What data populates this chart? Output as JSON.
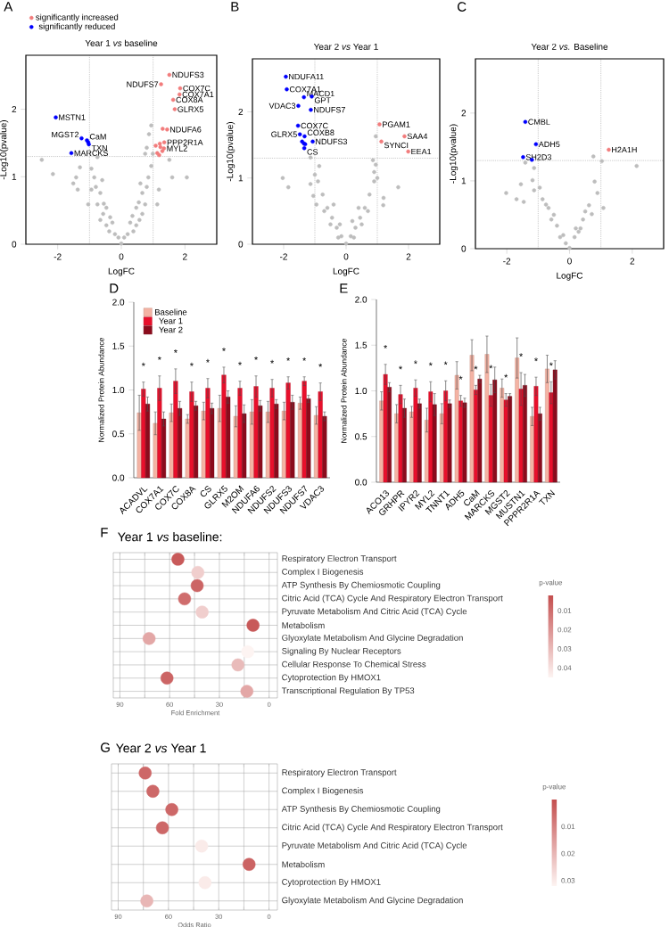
{
  "chart_data": [
    {
      "type": "scatter",
      "title": "Year 1 *vs* baseline",
      "xlabel": "LogFC",
      "ylabel": "-Log10(pvalue)",
      "xlim": [
        -3,
        3
      ],
      "ylim": [
        0,
        2.8
      ],
      "xticks": [
        -2,
        0,
        2
      ],
      "yticks": [
        0,
        1,
        2
      ],
      "marker": "circle",
      "legend": "top left",
      "series": [
        {
          "color": "#bdbdbd",
          "x": [
            -2.5,
            -2.15,
            -1.42,
            -1.37,
            -1.51,
            -1.3,
            -0.94,
            -0.75,
            -0.85,
            -0.94,
            -1.04,
            -0.75,
            -0.66,
            -0.66,
            -0.57,
            -0.47,
            -0.47,
            -0.38,
            -0.28,
            -0.09,
            0,
            0.09,
            0.28,
            0.38,
            0.47,
            0.47,
            0.57,
            0.66,
            0.66,
            0.75,
            0.85,
            0.94,
            0.99,
            0.75,
            0.8,
            0.87,
            0.94,
            1.13,
            1.18,
            1.51,
            1.6,
            2.06,
            -0.2,
            0.2,
            -0.55,
            0.55,
            -0.8,
            0.8,
            -0.35,
            0.35,
            -0.6,
            0.6
          ],
          "values": [
            1.25,
            1.04,
            0.99,
            0.81,
            0.9,
            1.14,
            1.12,
            1.29,
            0.99,
            0.81,
            0.59,
            0.59,
            0.76,
            0.36,
            0.45,
            0.54,
            0.28,
            0.19,
            0.32,
            0.1,
            0.01,
            0.1,
            0.32,
            0.19,
            0.28,
            0.54,
            0.36,
            0.45,
            0.76,
            0.59,
            0.99,
            1.16,
            1.34,
            1.34,
            1.43,
            1.63,
            1.76,
            0.59,
            0.81,
            1.25,
            0.99,
            0.99,
            0.15,
            0.15,
            0.6,
            0.62,
            0.85,
            0.85,
            0.4,
            0.42,
            0.95,
            0.9
          ]
        },
        {
          "name": "significantly increased",
          "color": "#f27c7c",
          "x": [
            1.51,
            1.25,
            1.85,
            1.83,
            1.63,
            1.68,
            1.3,
            1.44,
            1.08,
            1.21,
            1.35,
            1.23,
            1.34,
            1.13,
            1.29,
            1.19
          ],
          "values": [
            2.51,
            2.37,
            2.31,
            2.22,
            2.14,
            2.0,
            1.71,
            1.7,
            1.46,
            1.49,
            1.51,
            1.44,
            1.42,
            1.35,
            1.38,
            1.32
          ]
        },
        {
          "name": "significantly reduced",
          "color": "#0000ff",
          "x": [
            -2.06,
            -1.25,
            -1.08,
            -1.04,
            -1.02,
            -1.57
          ],
          "values": [
            1.88,
            1.57,
            1.54,
            1.51,
            1.48,
            1.35
          ]
        }
      ],
      "ref_lines": [
        {
          "axis": "x",
          "value": -1,
          "line_style": "dotted"
        },
        {
          "axis": "x",
          "value": 1,
          "line_style": "dotted"
        },
        {
          "axis": "y",
          "value": 1.3,
          "line_style": "dotted"
        }
      ],
      "annotations": [
        "A",
        {
          "text": "MSTN1",
          "x": -2.06,
          "y": 1.88
        },
        {
          "text": "MGST2",
          "x": -1.25,
          "y": 1.57
        },
        {
          "text": "CaM",
          "x": -1.08,
          "y": 1.54
        },
        {
          "text": "TXN",
          "x": -1.02,
          "y": 1.48
        },
        {
          "text": "MARCKS",
          "x": -1.57,
          "y": 1.35
        },
        {
          "text": "NDUFS3",
          "x": 1.51,
          "y": 2.51
        },
        {
          "text": "NDUFS7",
          "x": 1.25,
          "y": 2.37
        },
        {
          "text": "COX7C",
          "x": 1.85,
          "y": 2.31
        },
        {
          "text": "COX7A1",
          "x": 1.83,
          "y": 2.22
        },
        {
          "text": "COX8A",
          "x": 1.63,
          "y": 2.14
        },
        {
          "text": "GLRX5",
          "x": 1.68,
          "y": 2.0
        },
        {
          "text": "NDUFA6",
          "x": 1.44,
          "y": 1.7
        },
        {
          "text": "PPP2R1A",
          "x": 1.35,
          "y": 1.51
        },
        {
          "text": "MYL2",
          "x": 1.34,
          "y": 1.42
        }
      ]
    },
    {
      "type": "scatter",
      "title": "Year 2 *vs* Year 1",
      "xlabel": "LogFC",
      "ylabel": "-Log10(pvalue)",
      "xlim": [
        -3,
        3
      ],
      "ylim": [
        0,
        2.8
      ],
      "xticks": [
        -2,
        0,
        2
      ],
      "yticks": [
        0,
        1,
        2
      ],
      "marker": "circle",
      "series": [
        {
          "color": "#bdbdbd",
          "x": [
            -2.03,
            -1.85,
            -1.14,
            -1.05,
            -0.86,
            -1.14,
            -0.9,
            -0.75,
            -0.6,
            -0.45,
            -0.3,
            -0.15,
            0,
            0.15,
            0.3,
            0.45,
            0.6,
            0.75,
            0.9,
            0.86,
            0.9,
            0.95,
            1.19,
            1.67,
            -0.5,
            0.5,
            -0.25,
            0.25,
            -0.7,
            0.7,
            -0.4,
            0.4,
            0.95,
            1.0,
            -1.0,
            -0.95,
            0.2,
            -0.2,
            1.2
          ],
          "values": [
            1.0,
            0.86,
            0.91,
            0.73,
            1.18,
            1.31,
            0.95,
            0.75,
            0.55,
            0.4,
            0.25,
            0.12,
            0.01,
            0.12,
            0.25,
            0.4,
            0.55,
            0.75,
            0.95,
            1.27,
            1.09,
            1.63,
            0.59,
            0.86,
            0.3,
            0.3,
            0.1,
            0.1,
            0.5,
            0.5,
            0.6,
            0.55,
            1.2,
            1.0,
            1.05,
            0.6,
            0.35,
            0.3,
            0.7
          ]
        },
        {
          "color": "#f27c7c",
          "x": [
            1.07,
            1.87,
            1.13,
            1.99
          ],
          "values": [
            1.81,
            1.63,
            1.55,
            1.4
          ]
        },
        {
          "color": "#0000ff",
          "x": [
            -1.93,
            -1.9,
            -1.35,
            -1.1,
            -1.53,
            -1.13,
            -1.54,
            -1.48,
            -1.33,
            -1.07,
            -1.41,
            -1.35,
            -1.31,
            -1.34
          ],
          "values": [
            2.53,
            2.34,
            2.22,
            2.23,
            2.09,
            2.03,
            1.79,
            1.66,
            1.63,
            1.55,
            1.55,
            1.52,
            1.51,
            1.45
          ]
        }
      ],
      "ref_lines": [
        {
          "axis": "x",
          "value": -1,
          "line_style": "dotted"
        },
        {
          "axis": "x",
          "value": 1,
          "line_style": "dotted"
        },
        {
          "axis": "y",
          "value": 1.3,
          "line_style": "dotted"
        }
      ],
      "annotations": [
        "B",
        {
          "text": "NDUFA11",
          "x": -1.93,
          "y": 2.53
        },
        {
          "text": "COX7A1",
          "x": -1.9,
          "y": 2.34
        },
        {
          "text": "MACD1",
          "x": -1.35,
          "y": 2.22
        },
        {
          "text": "GPT",
          "x": -1.1,
          "y": 2.23
        },
        {
          "text": "VDAC3",
          "x": -1.53,
          "y": 2.09
        },
        {
          "text": "NDUFS7",
          "x": -1.13,
          "y": 2.03
        },
        {
          "text": "COX7C",
          "x": -1.54,
          "y": 1.79
        },
        {
          "text": "GLRX5",
          "x": -1.48,
          "y": 1.66
        },
        {
          "text": "COXB8",
          "x": -1.33,
          "y": 1.63
        },
        {
          "text": "NDUFS3",
          "x": -1.07,
          "y": 1.55
        },
        {
          "text": "CS",
          "x": -1.34,
          "y": 1.45
        },
        {
          "text": "PGAM1",
          "x": 1.07,
          "y": 1.81
        },
        {
          "text": "SAA4",
          "x": 1.87,
          "y": 1.63
        },
        {
          "text": "SYNCI",
          "x": 1.13,
          "y": 1.55
        },
        {
          "text": "EEA1",
          "x": 1.99,
          "y": 1.4
        }
      ]
    },
    {
      "type": "scatter",
      "title": "Year 2 *vs.* Baseline",
      "xlabel": "LogFC",
      "ylabel": "-Log10(pvalue)",
      "xlim": [
        -3,
        3
      ],
      "ylim": [
        0,
        2.8
      ],
      "xticks": [
        -2,
        0,
        2
      ],
      "yticks": [
        0,
        1,
        2
      ],
      "marker": "circle",
      "series": [
        {
          "color": "#bdbdbd",
          "x": [
            2.14,
            0.76,
            1.03,
            -2.02,
            -1.69,
            -1.46,
            -1.55,
            -1.41,
            -1.13,
            -1.18,
            -1.13,
            -0.95,
            1.08,
            0.89,
            0.8,
            -0.67,
            -0.4,
            -0.12,
            0,
            0.16,
            0.43,
            0.62,
            -0.58,
            -0.3,
            0.29,
            -0.86,
            0.71,
            -0.5,
            0.5,
            -0.2,
            0.2,
            -0.75,
            0.35
          ],
          "values": [
            1.22,
            1.36,
            1.29,
            0.82,
            0.73,
            0.69,
            0.95,
            1.27,
            1.19,
            1.01,
            0.86,
            0.9,
            0.6,
            0.82,
            0.99,
            0.6,
            0.34,
            0.08,
            0.01,
            0.17,
            0.43,
            0.64,
            0.43,
            0.17,
            0.25,
            0.73,
            0.51,
            0.5,
            0.55,
            0.2,
            0.3,
            0.65,
            0.3
          ]
        },
        {
          "color": "#f27c7c",
          "x": [
            1.25
          ],
          "values": [
            1.46
          ]
        },
        {
          "color": "#0000ff",
          "x": [
            -1.41,
            -1.07,
            -1.48,
            -1.2
          ],
          "values": [
            1.87,
            1.54,
            1.35,
            1.31
          ]
        }
      ],
      "ref_lines": [
        {
          "axis": "x",
          "value": -1,
          "line_style": "dotted"
        },
        {
          "axis": "x",
          "value": 1,
          "line_style": "dotted"
        },
        {
          "axis": "y",
          "value": 1.3,
          "line_style": "dotted"
        }
      ],
      "annotations": [
        "C",
        {
          "text": "CMBL",
          "x": -1.41,
          "y": 1.87
        },
        {
          "text": "ADH5",
          "x": -1.07,
          "y": 1.54
        },
        {
          "text": "SH2D3",
          "x": -1.48,
          "y": 1.35
        },
        {
          "text": "H2A1H",
          "x": 1.25,
          "y": 1.46
        }
      ]
    },
    {
      "type": "bar",
      "ylabel": "Normalized Protein Abundance",
      "ylim": [
        0,
        2
      ],
      "yticks": [
        {
          "value": 0,
          "label": "0.0"
        },
        {
          "value": 0.5,
          "label": "0.5"
        },
        {
          "value": 1,
          "label": "1.0"
        },
        {
          "value": 1.5,
          "label": "1.5"
        },
        {
          "value": 2,
          "label": "2.0"
        }
      ],
      "legend": "top left",
      "categories": [
        "ACADVL",
        "COX7A1",
        "COX7C",
        "COX8A",
        "CS",
        "GLRX5",
        "M2OM",
        "NDUFA6",
        "NDUFS2",
        "NDUFS3",
        "NDUFS7",
        "VDAC3"
      ],
      "series": [
        {
          "name": "Baseline",
          "color": "#f4b3a4",
          "values": [
            0.74,
            0.62,
            0.74,
            0.67,
            0.76,
            0.79,
            0.7,
            0.75,
            0.75,
            0.76,
            0.85,
            0.71
          ],
          "errors": [
            0.2,
            0.13,
            0.1,
            0.05,
            0.1,
            0.15,
            0.12,
            0.14,
            0.12,
            0.1,
            0.07,
            0.1
          ]
        },
        {
          "name": "Year 1",
          "color": "#e8102c",
          "values": [
            1.01,
            1.02,
            1.1,
            0.98,
            1.02,
            1.17,
            1.02,
            1.04,
            1.02,
            1.08,
            1.1,
            0.98
          ],
          "errors": [
            0.08,
            0.14,
            0.14,
            0.11,
            0.11,
            0.09,
            0.08,
            0.12,
            0.1,
            0.07,
            0.05,
            0.1
          ]
        },
        {
          "name": "Year 2",
          "color": "#8b0b1c",
          "values": [
            0.84,
            0.67,
            0.79,
            0.82,
            0.79,
            0.92,
            0.73,
            0.82,
            0.84,
            0.86,
            0.9,
            0.7
          ],
          "errors": [
            0.08,
            0.08,
            0.08,
            0.05,
            0.06,
            0.07,
            0.1,
            0.06,
            0.05,
            0.08,
            0.04,
            0.05
          ]
        }
      ],
      "annotations": [
        "D",
        "*",
        "*",
        "*",
        "*",
        "*",
        "*",
        "*",
        "*",
        "*",
        "*",
        "*",
        "*"
      ]
    },
    {
      "type": "bar",
      "ylabel": "Normalized Protein Abundance",
      "ylim": [
        0,
        2
      ],
      "yticks": [
        {
          "value": 0,
          "label": "0.0"
        },
        {
          "value": 0.5,
          "label": "0.5"
        },
        {
          "value": 1,
          "label": "1.0"
        },
        {
          "value": 1.5,
          "label": "1.5"
        },
        {
          "value": 2,
          "label": "2.0"
        }
      ],
      "categories": [
        "ACO13",
        "GRHPR",
        "IPYR2",
        "MYL2",
        "TNNT1",
        "ADH5",
        "CaM",
        "MARCKS",
        "MGST2",
        "MUSTN1",
        "PPPR2R1A",
        "TXN"
      ],
      "series": [
        {
          "color": "#f4b3a4",
          "values": [
            0.89,
            0.75,
            0.77,
            0.68,
            0.75,
            1.17,
            1.39,
            1.4,
            1.03,
            1.36,
            0.72,
            1.24
          ],
          "errors": [
            0.1,
            0.1,
            0.06,
            0.13,
            0.11,
            0.15,
            0.17,
            0.2,
            0.1,
            0.22,
            0.1,
            0.15
          ]
        },
        {
          "color": "#e8102c",
          "values": [
            1.18,
            0.96,
            1.03,
            0.99,
            1.0,
            0.89,
            1.01,
            0.95,
            0.9,
            1.02,
            1.05,
            0.98
          ],
          "errors": [
            0.11,
            0.1,
            0.09,
            0.11,
            0.11,
            0.06,
            0.05,
            0.12,
            0.07,
            0.18,
            0.1,
            0.12
          ]
        },
        {
          "color": "#8b0b1c",
          "values": [
            1.04,
            0.81,
            0.86,
            0.85,
            0.86,
            0.87,
            1.13,
            1.12,
            0.94,
            1.06,
            0.75,
            1.23
          ],
          "errors": [
            0.05,
            0.1,
            0.05,
            0.12,
            0.04,
            0.05,
            0.04,
            0.14,
            0.03,
            0.12,
            0.07,
            0.1
          ]
        }
      ],
      "annotations": [
        "E",
        "*",
        "*",
        "*",
        "*",
        "*",
        "*",
        "*",
        "*",
        "*",
        "*",
        "*",
        "*"
      ]
    },
    {
      "type": "scatter",
      "orientation": "horizontal",
      "title": "Year 1 *vs* baseline:",
      "xlabel": "Fold Enrichment",
      "xlim": [
        94,
        -5
      ],
      "xticks": [
        90,
        60,
        30,
        0
      ],
      "grid": true,
      "marker": "circle",
      "clabel": "p-value",
      "clim": [
        0.002,
        0.045
      ],
      "cticks": [
        0.01,
        0.02,
        0.03,
        0.04
      ],
      "categories": [
        "Respiratory Electron Transport",
        "Complex I Biogenesis",
        "ATP Synthesis By Chemiosmotic Coupling",
        "Citric Acid (TCA) Cycle And Respiratory Electron Transport",
        "Pyruvate Metabolism And Citric Acid (TCA) Cycle",
        "Metabolism",
        "Glyoxylate Metabolism And Glycine Degradation",
        "Signaling By Nuclear Receptors",
        "Cellular Response To Chemical Stress",
        "Cytoprotection By HMOX1",
        "Transcriptional Regulation By TP53"
      ],
      "values": [
        55,
        43,
        43.4,
        51,
        40.4,
        9.7,
        72.4,
        12.9,
        18.8,
        61.6,
        13.4
      ],
      "cvalues": [
        0.005,
        0.035,
        0.008,
        0.01,
        0.035,
        0.005,
        0.025,
        0.045,
        0.03,
        0.008,
        0.025
      ],
      "annotations": [
        "F"
      ]
    },
    {
      "type": "scatter",
      "orientation": "horizontal",
      "title": "Year 2 *vs* Year 1",
      "xlabel": "Odds Ratio",
      "xlim": [
        94,
        -5
      ],
      "xticks": [
        90,
        60,
        30,
        0
      ],
      "grid": true,
      "marker": "circle",
      "clabel": "p-value",
      "clim": [
        0,
        0.032
      ],
      "cticks": [
        0.01,
        0.02,
        0.03
      ],
      "categories": [
        "Respiratory Electron Transport",
        "Complex I Biogenesis",
        "ATP Synthesis By Chemiosmotic Coupling",
        "Citric Acid (TCA) Cycle And Respiratory Electron Transport",
        "Pyruvate Metabolism And Citric Acid (TCA) Cycle",
        "Metabolism",
        "Cytoprotection By HMOX1",
        "Glyoxylate Metabolism And Glycine Degradation"
      ],
      "values": [
        73.9,
        69.3,
        58,
        63.6,
        40.2,
        11.9,
        38.2,
        72.9
      ],
      "cvalues": [
        0.005,
        0.005,
        0.005,
        0.005,
        0.03,
        0.004,
        0.03,
        0.02
      ],
      "annotations": [
        "G"
      ]
    }
  ]
}
